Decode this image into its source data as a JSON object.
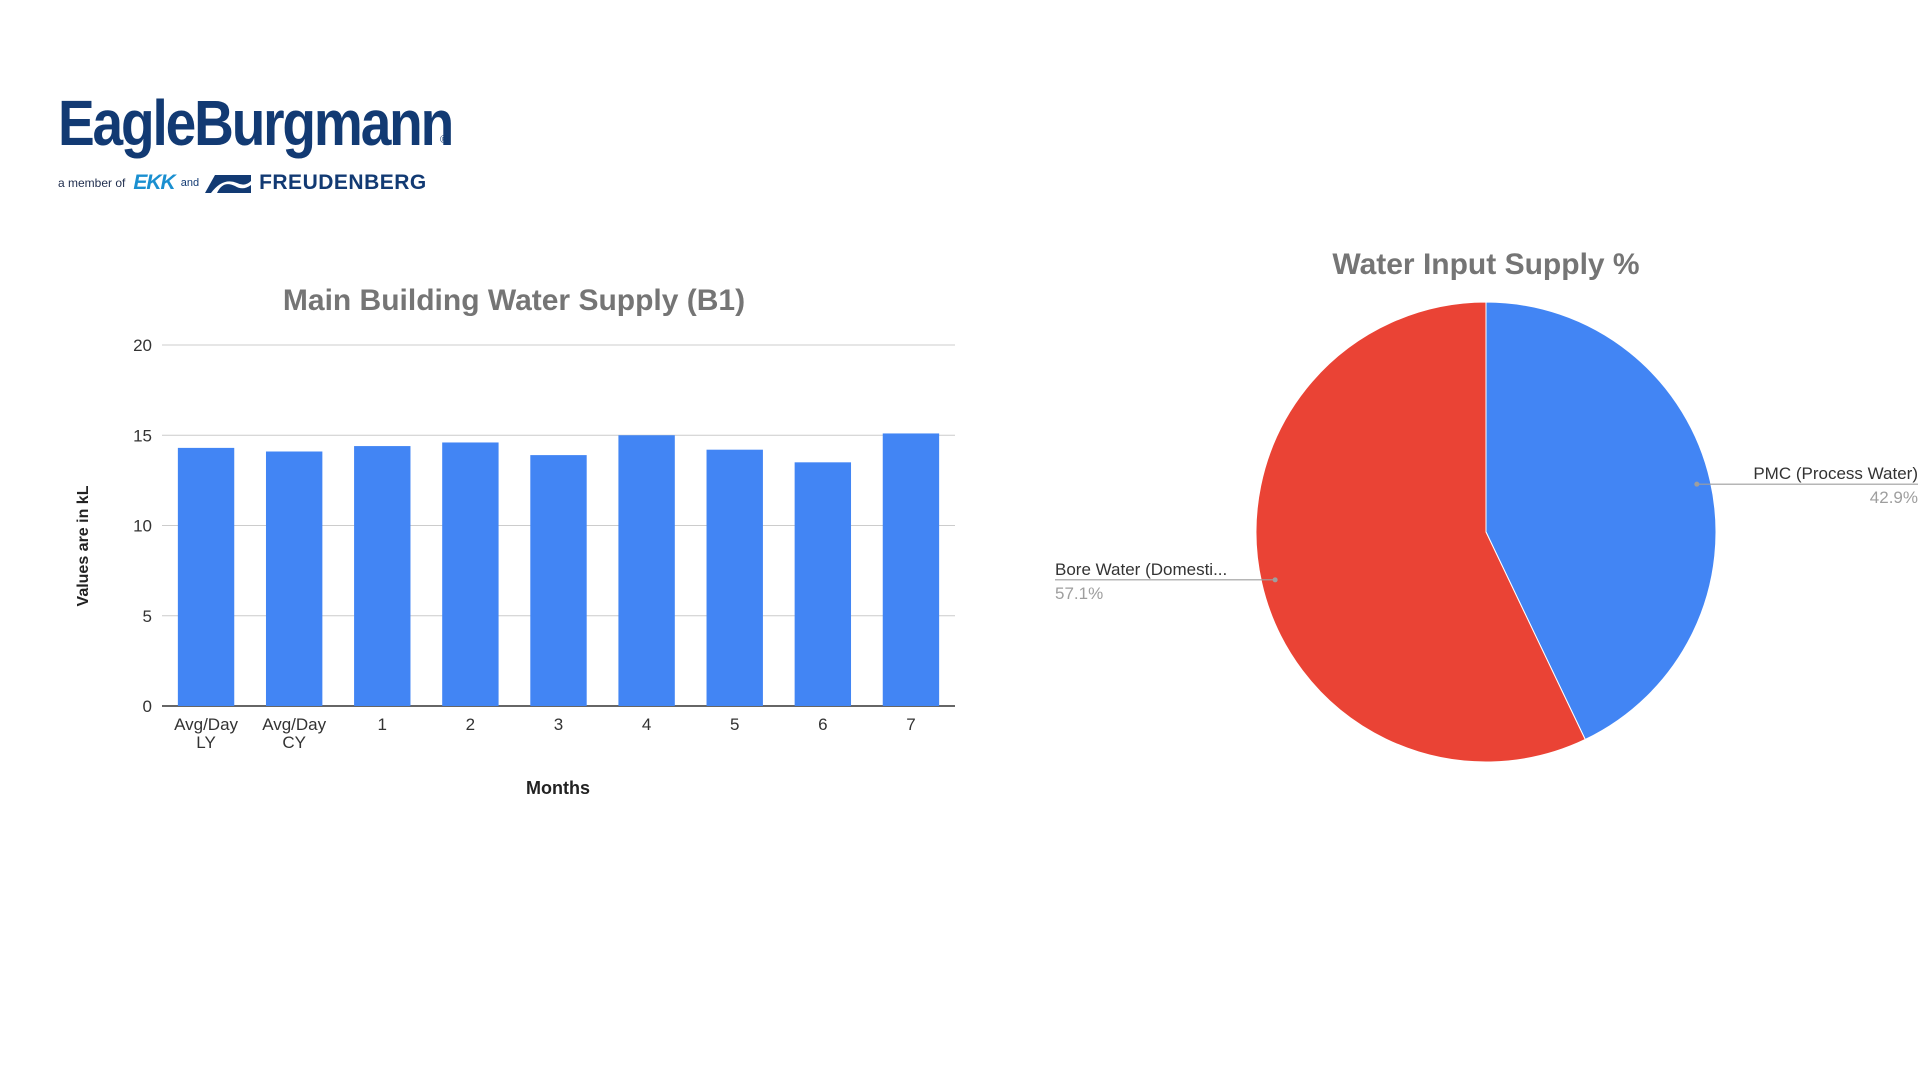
{
  "logo": {
    "brand": "EagleBurgmann",
    "registered": "®",
    "member_text": "a member of",
    "ekk": "EKK",
    "and_text": "and",
    "freudenberg": "FREUDENBERG",
    "colors": {
      "navy": "#123a73",
      "cyan": "#1a8fd0"
    }
  },
  "chart_data": [
    {
      "type": "bar",
      "title": "Main Building Water Supply (B1)",
      "xlabel": "Months",
      "ylabel": "Values are in kL",
      "categories": [
        [
          "Avg/Day",
          "LY"
        ],
        [
          "Avg/Day",
          "CY"
        ],
        [
          "1"
        ],
        [
          "2"
        ],
        [
          "3"
        ],
        [
          "4"
        ],
        [
          "5"
        ],
        [
          "6"
        ],
        [
          "7"
        ]
      ],
      "values": [
        14.3,
        14.1,
        14.4,
        14.6,
        13.9,
        15.0,
        14.2,
        13.5,
        15.1
      ],
      "ylim": [
        0,
        20
      ],
      "yticks": [
        0,
        5,
        10,
        15,
        20
      ],
      "grid": true,
      "color": "#4285f4"
    },
    {
      "type": "pie",
      "title": "Water Input Supply %",
      "slices": [
        {
          "label": "PMC (Process Water)",
          "value": 42.9,
          "pct_label": "42.9%",
          "color": "#4285f4"
        },
        {
          "label": "Bore Water (Domesti...",
          "value": 57.1,
          "pct_label": "57.1%",
          "color": "#ea4335"
        }
      ]
    }
  ]
}
